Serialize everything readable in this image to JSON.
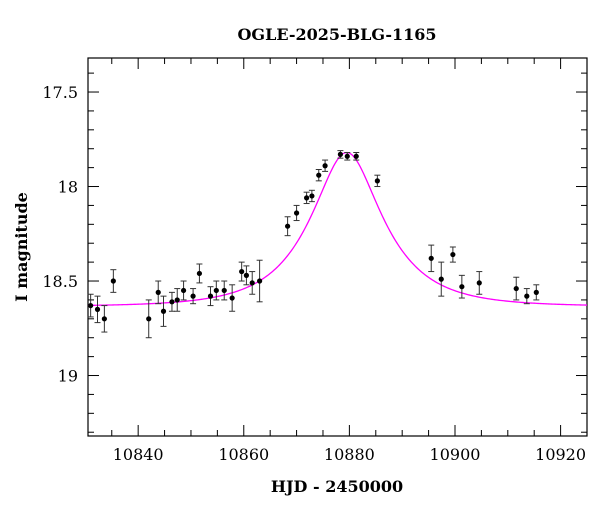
{
  "chart_data": {
    "type": "scatter",
    "title": "OGLE-2025-BLG-1165",
    "xlabel": "HJD - 2450000",
    "ylabel": "I magnitude",
    "xlim": [
      10830.5,
      10925
    ],
    "ylim": [
      19.32,
      17.32
    ],
    "y_inverted": true,
    "x_ticks": [
      10840,
      10860,
      10880,
      10900,
      10920
    ],
    "x_tick_labels": [
      "10840",
      "10860",
      "10880",
      "10900",
      "10920"
    ],
    "x_minor_step": 5,
    "y_ticks": [
      17.5,
      18,
      18.5,
      19
    ],
    "y_tick_labels": [
      "17.5",
      "18",
      "18.5",
      "19"
    ],
    "y_minor_step": 0.1,
    "grid": false,
    "colors": {
      "model": "#ff00ff",
      "points": "#000000",
      "errorbars": "#333333"
    },
    "model": {
      "type": "microlensing-fit",
      "t0": 10879.5,
      "u0": 0.462,
      "tE": 12.5,
      "base_mag": 18.635,
      "peak_mag": 17.82
    },
    "series": [
      {
        "points": [
          {
            "x": 10831.0,
            "y": 18.63,
            "err": 0.06
          },
          {
            "x": 10832.3,
            "y": 18.65,
            "err": 0.07
          },
          {
            "x": 10833.6,
            "y": 18.7,
            "err": 0.07
          },
          {
            "x": 10835.3,
            "y": 18.5,
            "err": 0.06
          },
          {
            "x": 10842.0,
            "y": 18.7,
            "err": 0.1
          },
          {
            "x": 10843.8,
            "y": 18.56,
            "err": 0.06
          },
          {
            "x": 10844.8,
            "y": 18.66,
            "err": 0.08
          },
          {
            "x": 10846.4,
            "y": 18.61,
            "err": 0.05
          },
          {
            "x": 10847.4,
            "y": 18.6,
            "err": 0.06
          },
          {
            "x": 10848.6,
            "y": 18.55,
            "err": 0.05
          },
          {
            "x": 10850.4,
            "y": 18.58,
            "err": 0.04
          },
          {
            "x": 10851.6,
            "y": 18.46,
            "err": 0.05
          },
          {
            "x": 10853.7,
            "y": 18.58,
            "err": 0.05
          },
          {
            "x": 10854.8,
            "y": 18.55,
            "err": 0.05
          },
          {
            "x": 10856.3,
            "y": 18.55,
            "err": 0.05
          },
          {
            "x": 10857.8,
            "y": 18.59,
            "err": 0.07
          },
          {
            "x": 10859.6,
            "y": 18.45,
            "err": 0.05
          },
          {
            "x": 10860.5,
            "y": 18.47,
            "err": 0.05
          },
          {
            "x": 10861.6,
            "y": 18.51,
            "err": 0.06
          },
          {
            "x": 10863.0,
            "y": 18.5,
            "err": 0.11
          },
          {
            "x": 10868.3,
            "y": 18.21,
            "err": 0.05
          },
          {
            "x": 10870.0,
            "y": 18.14,
            "err": 0.04
          },
          {
            "x": 10871.9,
            "y": 18.06,
            "err": 0.03
          },
          {
            "x": 10872.9,
            "y": 18.05,
            "err": 0.03
          },
          {
            "x": 10874.2,
            "y": 17.94,
            "err": 0.03
          },
          {
            "x": 10875.4,
            "y": 17.89,
            "err": 0.03
          },
          {
            "x": 10878.3,
            "y": 17.83,
            "err": 0.02
          },
          {
            "x": 10879.6,
            "y": 17.84,
            "err": 0.02
          },
          {
            "x": 10881.3,
            "y": 17.84,
            "err": 0.02
          },
          {
            "x": 10885.3,
            "y": 17.97,
            "err": 0.03
          },
          {
            "x": 10895.5,
            "y": 18.38,
            "err": 0.07
          },
          {
            "x": 10897.4,
            "y": 18.49,
            "err": 0.09
          },
          {
            "x": 10899.6,
            "y": 18.36,
            "err": 0.04
          },
          {
            "x": 10901.3,
            "y": 18.53,
            "err": 0.06
          },
          {
            "x": 10904.6,
            "y": 18.51,
            "err": 0.06
          },
          {
            "x": 10911.6,
            "y": 18.54,
            "err": 0.06
          },
          {
            "x": 10913.6,
            "y": 18.58,
            "err": 0.04
          },
          {
            "x": 10915.4,
            "y": 18.56,
            "err": 0.04
          }
        ]
      }
    ]
  }
}
